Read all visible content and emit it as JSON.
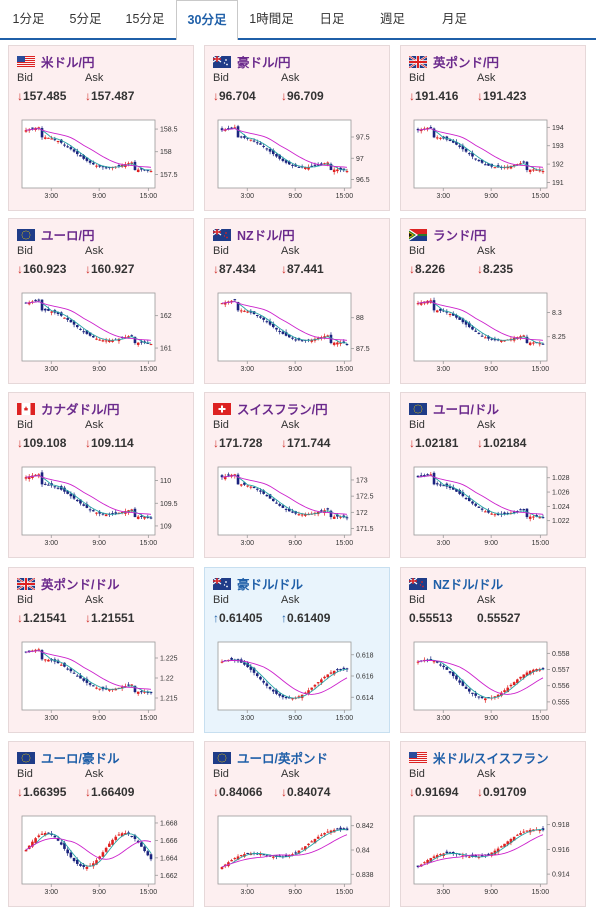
{
  "tabs": [
    {
      "label": "1分足",
      "active": false
    },
    {
      "label": "5分足",
      "active": false
    },
    {
      "label": "15分足",
      "active": false
    },
    {
      "label": "30分足",
      "active": true
    },
    {
      "label": "1時間足",
      "active": false
    },
    {
      "label": "日足",
      "active": false
    },
    {
      "label": "週足",
      "active": false
    },
    {
      "label": "月足",
      "active": false
    }
  ],
  "labels": {
    "bid": "Bid",
    "ask": "Ask"
  },
  "colors": {
    "up_candle": "#e02020",
    "down_candle": "#1a237e",
    "ma_short": "#26a4a4",
    "ma_long": "#cc22cc",
    "down_arrow": "#d0312d",
    "up_arrow": "#1f5fa8",
    "title": "#6b2a8c"
  },
  "pairs": [
    {
      "name": "米ドル/円",
      "flag": "us-flag",
      "bid": "157.485",
      "ask": "157.487",
      "dir": "down",
      "x_ticks": [
        "3:00",
        "9:00",
        "15:00"
      ],
      "y_ticks": [
        "158.5",
        "158",
        "157.5"
      ],
      "ylim": [
        157.2,
        158.7
      ]
    },
    {
      "name": "豪ドル/円",
      "flag": "au-flag",
      "bid": "96.704",
      "ask": "96.709",
      "dir": "down",
      "x_ticks": [
        "3:00",
        "9:00",
        "15:00"
      ],
      "y_ticks": [
        "97.5",
        "97",
        "96.5"
      ],
      "ylim": [
        96.3,
        97.9
      ]
    },
    {
      "name": "英ポンド/円",
      "flag": "gb-flag",
      "bid": "191.416",
      "ask": "191.423",
      "dir": "down",
      "x_ticks": [
        "3:00",
        "9:00",
        "15:00"
      ],
      "y_ticks": [
        "194",
        "193",
        "192",
        "191"
      ],
      "ylim": [
        190.7,
        194.4
      ]
    },
    {
      "name": "ユーロ/円",
      "flag": "eu-flag",
      "bid": "160.923",
      "ask": "160.927",
      "dir": "down",
      "x_ticks": [
        "3:00",
        "9:00",
        "15:00"
      ],
      "y_ticks": [
        "162",
        "161"
      ],
      "ylim": [
        160.6,
        162.7
      ]
    },
    {
      "name": "NZドル/円",
      "flag": "nz-flag",
      "bid": "87.434",
      "ask": "87.441",
      "dir": "down",
      "x_ticks": [
        "3:00",
        "9:00",
        "15:00"
      ],
      "y_ticks": [
        "88",
        "87.5"
      ],
      "ylim": [
        87.3,
        88.4
      ]
    },
    {
      "name": "ランド/円",
      "flag": "za-flag",
      "bid": "8.226",
      "ask": "8.235",
      "dir": "down",
      "x_ticks": [
        "3:00",
        "9:00",
        "15:00"
      ],
      "y_ticks": [
        "8.3",
        "8.25"
      ],
      "ylim": [
        8.2,
        8.34
      ]
    },
    {
      "name": "カナダドル/円",
      "flag": "ca-flag",
      "bid": "109.108",
      "ask": "109.114",
      "dir": "down",
      "x_ticks": [
        "3:00",
        "9:00",
        "15:00"
      ],
      "y_ticks": [
        "110",
        "109.5",
        "109"
      ],
      "ylim": [
        108.8,
        110.3
      ]
    },
    {
      "name": "スイスフラン/円",
      "flag": "ch-flag",
      "bid": "171.728",
      "ask": "171.744",
      "dir": "down",
      "x_ticks": [
        "3:00",
        "9:00",
        "15:00"
      ],
      "y_ticks": [
        "173",
        "172.5",
        "172",
        "171.5"
      ],
      "ylim": [
        171.3,
        173.4
      ]
    },
    {
      "name": "ユーロ/ドル",
      "flag": "eu-flag",
      "bid": "1.02181",
      "ask": "1.02184",
      "dir": "down",
      "x_ticks": [
        "3:00",
        "9:00",
        "15:00"
      ],
      "y_ticks": [
        "1.028",
        "1.026",
        "1.024",
        "1.022"
      ],
      "ylim": [
        1.02,
        1.0295
      ]
    },
    {
      "name": "英ポンド/ドル",
      "flag": "gb-flag",
      "bid": "1.21541",
      "ask": "1.21551",
      "dir": "down",
      "x_ticks": [
        "3:00",
        "9:00",
        "15:00"
      ],
      "y_ticks": [
        "1.225",
        "1.22",
        "1.215"
      ],
      "ylim": [
        1.212,
        1.229
      ]
    },
    {
      "name": "豪ドル/ドル",
      "flag": "au-flag",
      "bid": "0.61405",
      "ask": "0.61409",
      "dir": "up",
      "x_ticks": [
        "3:00",
        "9:00",
        "15:00"
      ],
      "y_ticks": [
        "0.618",
        "0.616",
        "0.614"
      ],
      "ylim": [
        0.6128,
        0.6192
      ]
    },
    {
      "name": "NZドル/ドル",
      "flag": "nz-flag",
      "bid": "0.55513",
      "ask": "0.55527",
      "dir": "none",
      "x_ticks": [
        "3:00",
        "9:00",
        "15:00"
      ],
      "y_ticks": [
        "0.558",
        "0.557",
        "0.556",
        "0.555"
      ],
      "ylim": [
        0.5545,
        0.5587
      ]
    },
    {
      "name": "ユーロ/豪ドル",
      "flag": "eu-flag",
      "bid": "1.66395",
      "ask": "1.66409",
      "dir": "down",
      "x_ticks": [
        "3:00",
        "9:00",
        "15:00"
      ],
      "y_ticks": [
        "1.668",
        "1.666",
        "1.664",
        "1.662"
      ],
      "ylim": [
        1.661,
        1.6688
      ]
    },
    {
      "name": "ユーロ/英ポンド",
      "flag": "eu-flag",
      "bid": "0.84066",
      "ask": "0.84074",
      "dir": "down",
      "x_ticks": [
        "3:00",
        "9:00",
        "15:00"
      ],
      "y_ticks": [
        "0.842",
        "0.84",
        "0.838"
      ],
      "ylim": [
        0.8372,
        0.8428
      ]
    },
    {
      "name": "米ドル/スイスフラン",
      "flag": "us-flag",
      "bid": "0.91694",
      "ask": "0.91709",
      "dir": "down",
      "x_ticks": [
        "3:00",
        "9:00",
        "15:00"
      ],
      "y_ticks": [
        "0.918",
        "0.916",
        "0.914"
      ],
      "ylim": [
        0.9132,
        0.9187
      ]
    }
  ]
}
